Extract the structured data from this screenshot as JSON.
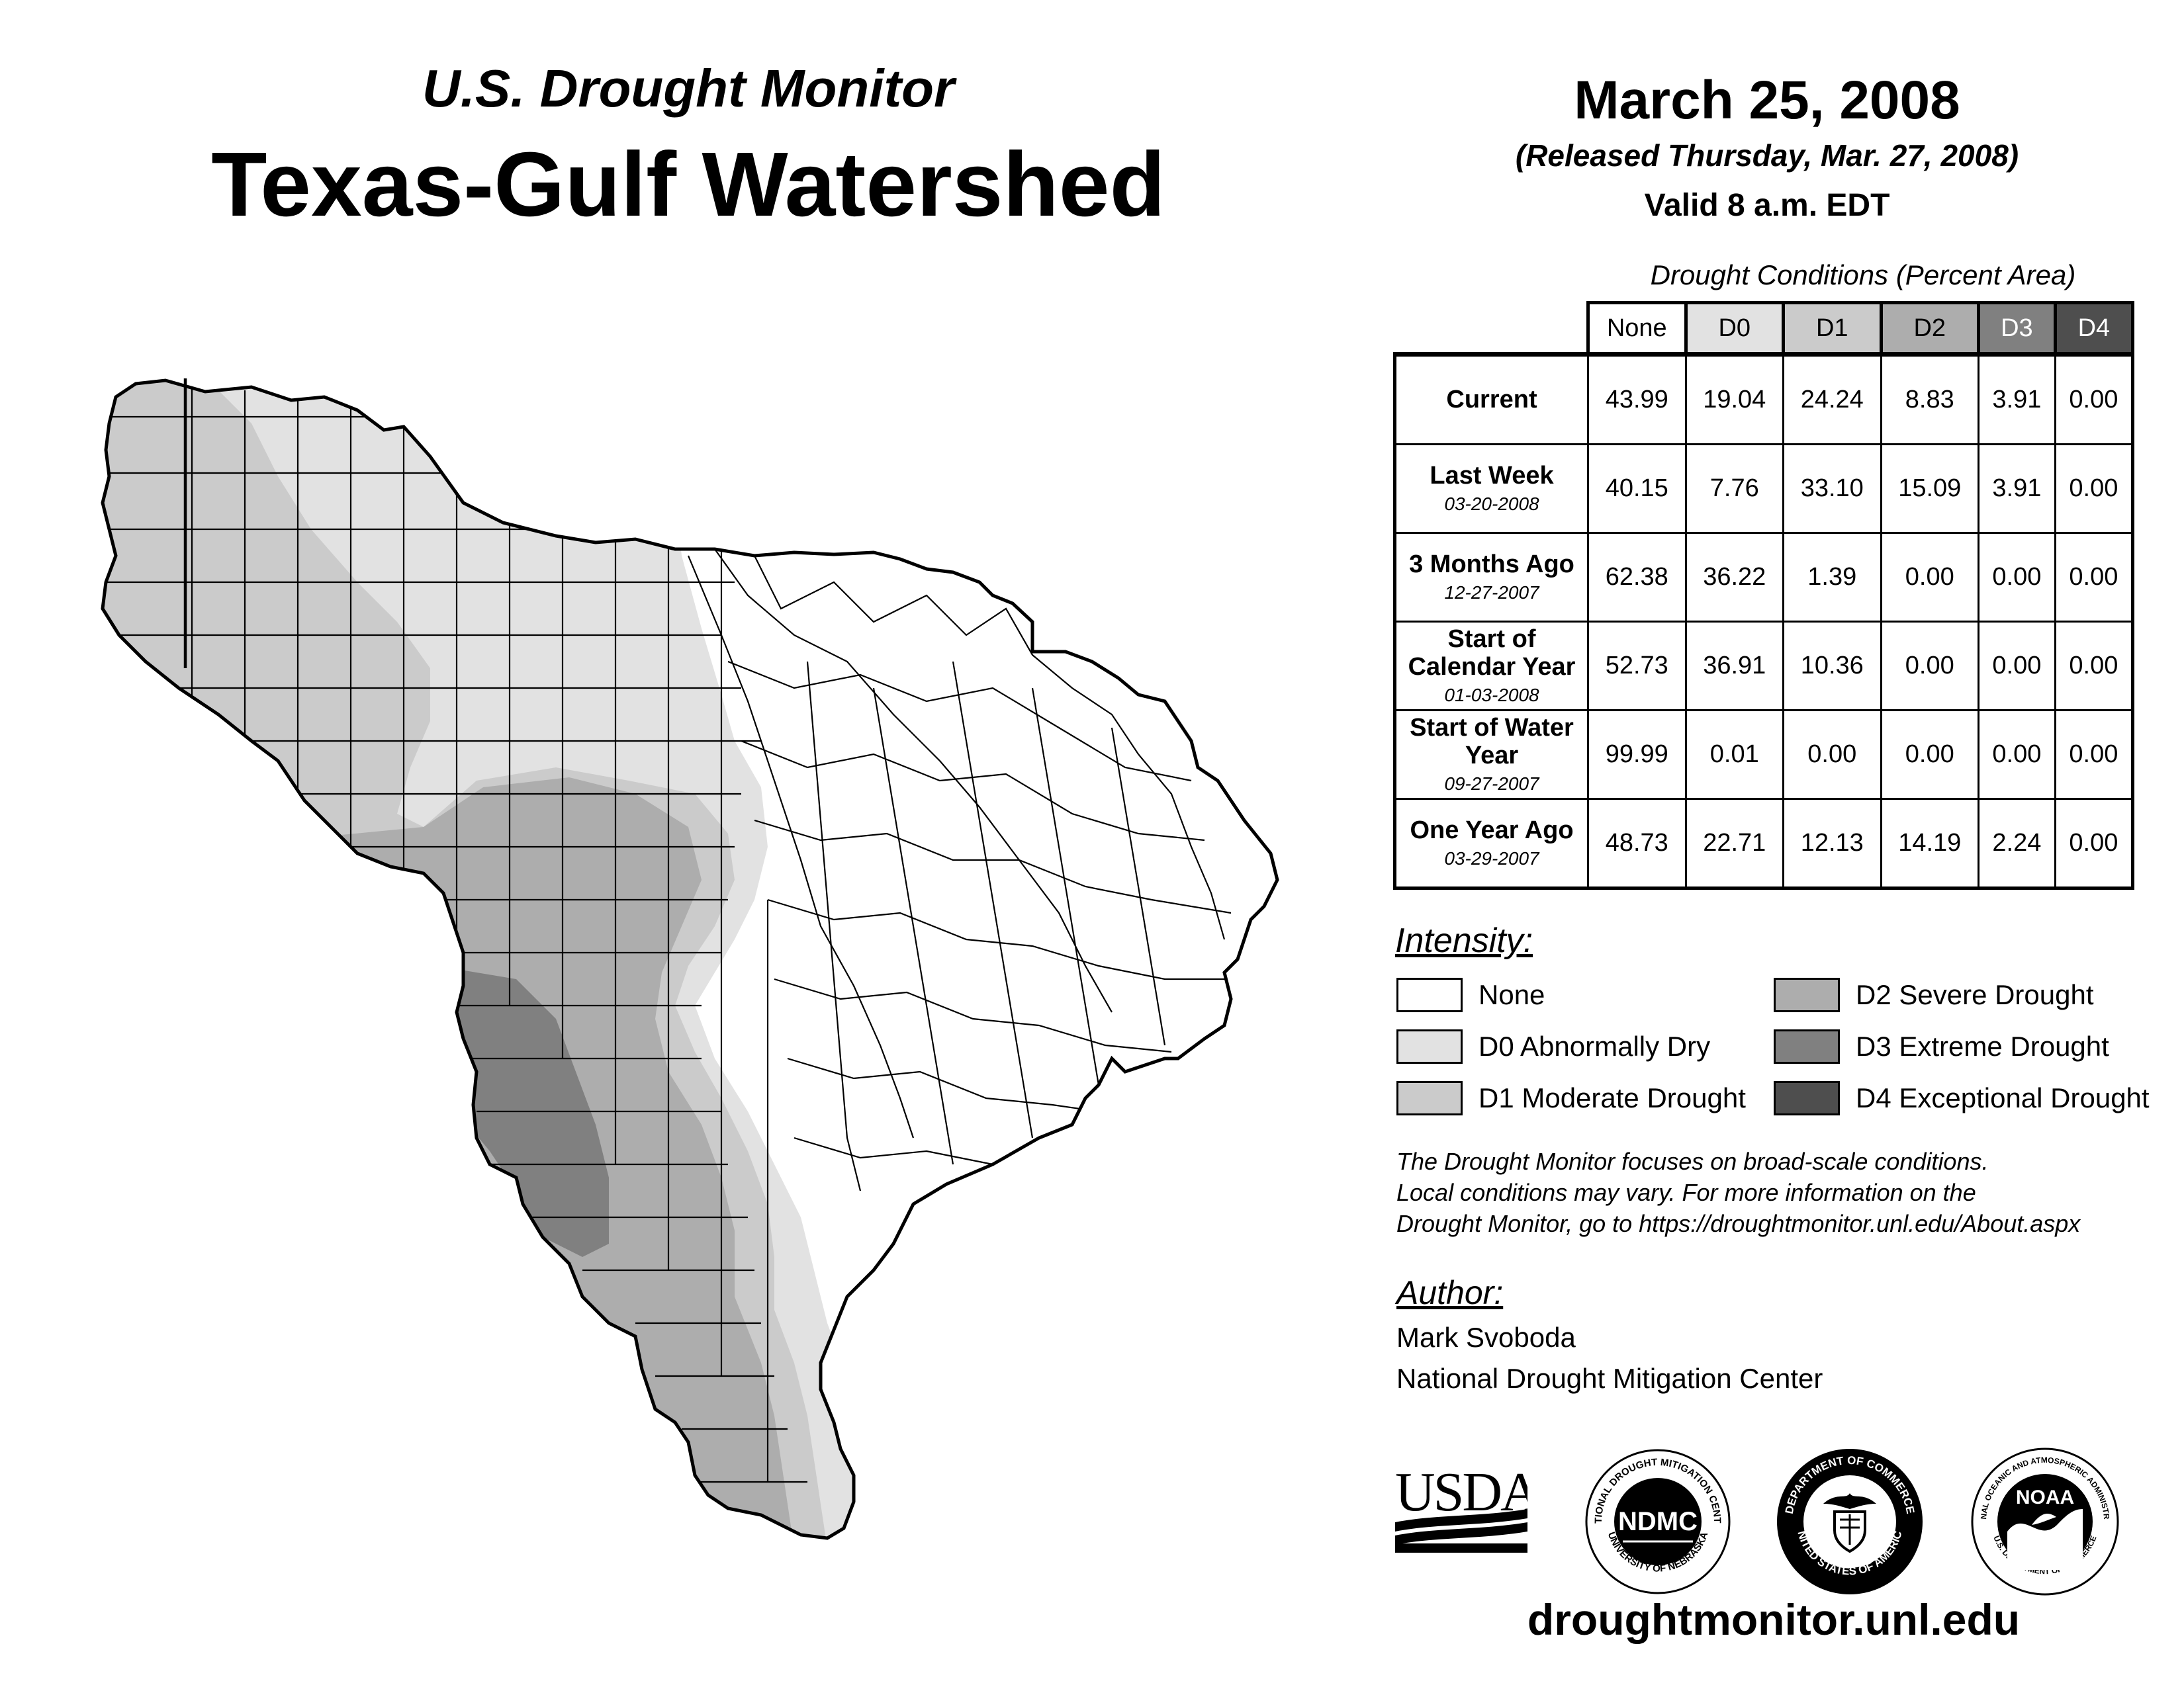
{
  "header": {
    "subtitle": "U.S. Drought Monitor",
    "title": "Texas-Gulf Watershed",
    "date": "March 25, 2008",
    "released": "(Released Thursday, Mar. 27, 2008)",
    "valid": "Valid 8 a.m. EDT"
  },
  "table": {
    "caption": "Drought Conditions (Percent Area)",
    "columns": [
      "None",
      "D0",
      "D1",
      "D2",
      "D3",
      "D4"
    ],
    "rows": [
      {
        "label": "Current",
        "date": "",
        "values": [
          "43.99",
          "19.04",
          "24.24",
          "8.83",
          "3.91",
          "0.00"
        ]
      },
      {
        "label": "Last Week",
        "date": "03-20-2008",
        "values": [
          "40.15",
          "7.76",
          "33.10",
          "15.09",
          "3.91",
          "0.00"
        ]
      },
      {
        "label": "3 Months Ago",
        "date": "12-27-2007",
        "values": [
          "62.38",
          "36.22",
          "1.39",
          "0.00",
          "0.00",
          "0.00"
        ]
      },
      {
        "label": "Start of Calendar Year",
        "date": "01-03-2008",
        "values": [
          "52.73",
          "36.91",
          "10.36",
          "0.00",
          "0.00",
          "0.00"
        ]
      },
      {
        "label": "Start of Water Year",
        "date": "09-27-2007",
        "values": [
          "99.99",
          "0.01",
          "0.00",
          "0.00",
          "0.00",
          "0.00"
        ]
      },
      {
        "label": "One Year Ago",
        "date": "03-29-2007",
        "values": [
          "48.73",
          "22.71",
          "12.13",
          "14.19",
          "2.24",
          "0.00"
        ]
      }
    ]
  },
  "legend": {
    "heading": "Intensity:",
    "items": [
      {
        "label": "None",
        "color": "#ffffff"
      },
      {
        "label": "D0 Abnormally Dry",
        "color": "#e2e2e2"
      },
      {
        "label": "D1 Moderate Drought",
        "color": "#cbcbcb"
      },
      {
        "label": "D2 Severe Drought",
        "color": "#adadad"
      },
      {
        "label": "D3 Extreme Drought",
        "color": "#808080"
      },
      {
        "label": "D4 Exceptional Drought",
        "color": "#4e4e4e"
      }
    ]
  },
  "disclaimer": {
    "line1": "The Drought Monitor focuses on broad-scale conditions.",
    "line2": "Local conditions may vary. For more information on the",
    "line3": "Drought Monitor, go to https://droughtmonitor.unl.edu/About.aspx"
  },
  "author": {
    "heading": "Author:",
    "name": "Mark Svoboda",
    "org": "National Drought Mitigation Center"
  },
  "logos": {
    "usda": "USDA",
    "ndmc": "NDMC",
    "ndmc_ring_top": "NATIONAL DROUGHT MITIGATION CENTER",
    "ndmc_ring_bottom": "UNIVERSITY OF NEBRASKA",
    "doc_ring_top": "DEPARTMENT OF COMMERCE",
    "doc_ring_bottom": "UNITED STATES OF AMERICA",
    "noaa": "NOAA",
    "noaa_ring_top": "NATIONAL OCEANIC AND ATMOSPHERIC ADMINISTRATION",
    "noaa_ring_bottom": "U.S. DEPARTMENT OF COMMERCE"
  },
  "website": "droughtmonitor.unl.edu"
}
